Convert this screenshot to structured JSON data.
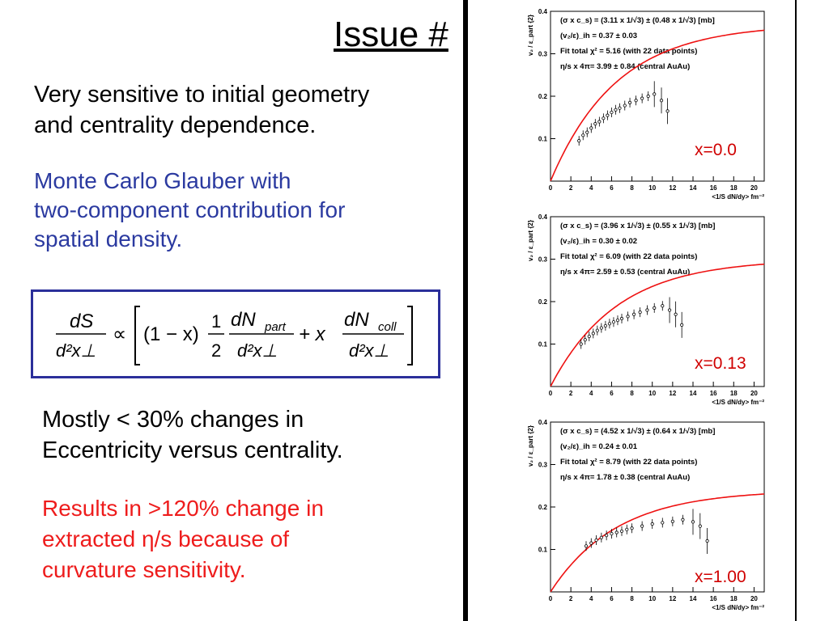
{
  "slide": {
    "title": "Issue #",
    "line1a": "Very sensitive to initial geometry",
    "line1b": "and centrality dependence.",
    "line2a": "Monte Carlo Glauber with",
    "line2b": "two-component contribution for",
    "line2c": "spatial density.",
    "line3a": "Mostly < 30% changes in",
    "line3b": "Eccentricity versus centrality.",
    "line4a": "Results in >120% change in",
    "line4b": "extracted η/s because of",
    "line4c": "curvature sensitivity."
  },
  "equation": {
    "lhs_num": "dS",
    "lhs_den": "d²x⊥",
    "propto": "∝",
    "one_minus_x": "(1 − x)",
    "half_num": "1",
    "half_den": "2",
    "npart_num": "dN",
    "npart_sub": "part",
    "npart_den": "d²x⊥",
    "plus_x": "+ x",
    "ncoll_num": "dN",
    "ncoll_sub": "coll",
    "ncoll_den": "d²x⊥"
  },
  "chart_data": [
    {
      "type": "scatter",
      "label": "x=0.0",
      "ylabel": "v₂ / ε_part {2}",
      "xlabel": "<1/S dN/dy> fm⁻²",
      "xlim": [
        0,
        21
      ],
      "ylim": [
        0,
        0.4
      ],
      "xticks": [
        "0",
        "2",
        "4",
        "6",
        "8",
        "10",
        "12",
        "14",
        "16",
        "18",
        "20"
      ],
      "yticks": [
        "0.1",
        "0.2",
        "0.3",
        "0.4"
      ],
      "annotations": [
        "(σ x c_s) = (3.11 x 1/√3) ± (0.48 x 1/√3) [mb]",
        "(v₂/ε)_ih = 0.37 ± 0.03",
        "Fit total χ² = 5.16 (with 22 data points)",
        "η/s x 4π= 3.99 ± 0.84 (central AuAu)"
      ],
      "fit_vmax": 0.37,
      "x": [
        2.8,
        3.2,
        3.6,
        4.0,
        4.4,
        4.8,
        5.2,
        5.6,
        6.0,
        6.4,
        6.8,
        7.3,
        7.8,
        8.4,
        9.0,
        9.6,
        10.2,
        10.9,
        11.5
      ],
      "y": [
        0.095,
        0.108,
        0.115,
        0.125,
        0.135,
        0.14,
        0.148,
        0.155,
        0.162,
        0.168,
        0.172,
        0.178,
        0.185,
        0.19,
        0.195,
        0.2,
        0.205,
        0.19,
        0.165
      ]
    },
    {
      "type": "scatter",
      "label": "x=0.13",
      "ylabel": "v₂ / ε_part {2}",
      "xlabel": "<1/S dN/dy> fm⁻²",
      "xlim": [
        0,
        21
      ],
      "ylim": [
        0,
        0.4
      ],
      "xticks": [
        "0",
        "2",
        "4",
        "6",
        "8",
        "10",
        "12",
        "14",
        "16",
        "18",
        "20"
      ],
      "yticks": [
        "0.1",
        "0.2",
        "0.3",
        "0.4"
      ],
      "annotations": [
        "(σ x c_s) = (3.96 x 1/√3) ± (0.55 x 1/√3) [mb]",
        "(v₂/ε)_ih = 0.30 ± 0.02",
        "Fit total χ² = 6.09 (with 22 data points)",
        "η/s x 4π= 2.59 ± 0.53 (central AuAu)"
      ],
      "fit_vmax": 0.3,
      "x": [
        3.0,
        3.4,
        3.8,
        4.2,
        4.6,
        5.0,
        5.4,
        5.8,
        6.2,
        6.6,
        7.0,
        7.6,
        8.2,
        8.8,
        9.5,
        10.2,
        11.0,
        11.7,
        12.3,
        12.9
      ],
      "y": [
        0.1,
        0.11,
        0.118,
        0.125,
        0.132,
        0.138,
        0.143,
        0.148,
        0.152,
        0.156,
        0.16,
        0.165,
        0.17,
        0.175,
        0.18,
        0.185,
        0.19,
        0.18,
        0.17,
        0.145
      ]
    },
    {
      "type": "scatter",
      "label": "x=1.00",
      "ylabel": "v₂ / ε_part {2}",
      "xlabel": "<1/S dN/dy> fm⁻²",
      "xlim": [
        0,
        21
      ],
      "ylim": [
        0,
        0.4
      ],
      "xticks": [
        "0",
        "2",
        "4",
        "6",
        "8",
        "10",
        "12",
        "14",
        "16",
        "18",
        "20"
      ],
      "yticks": [
        "0.1",
        "0.2",
        "0.3",
        "0.4"
      ],
      "annotations": [
        "(σ x c_s) = (4.52 x 1/√3) ± (0.64 x 1/√3) [mb]",
        "(v₂/ε)_ih = 0.24 ± 0.01",
        "Fit total χ² = 8.79 (with 22 data points)",
        "η/s x 4π= 1.78 ± 0.38 (central AuAu)"
      ],
      "fit_vmax": 0.24,
      "x": [
        3.5,
        4.0,
        4.5,
        5.0,
        5.5,
        6.0,
        6.5,
        7.0,
        7.5,
        8.0,
        9.0,
        10.0,
        11.0,
        12.0,
        13.0,
        14.0,
        14.7,
        15.4
      ],
      "y": [
        0.108,
        0.115,
        0.122,
        0.128,
        0.133,
        0.137,
        0.14,
        0.143,
        0.147,
        0.15,
        0.155,
        0.16,
        0.163,
        0.166,
        0.17,
        0.165,
        0.155,
        0.12
      ]
    }
  ]
}
